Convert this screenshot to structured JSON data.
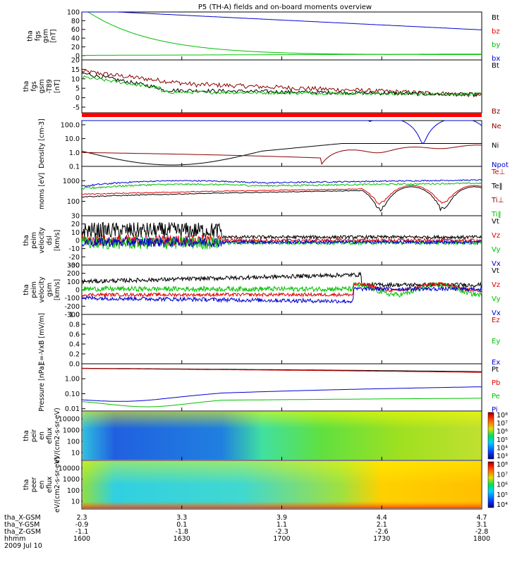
{
  "title": "P5 (TH-A) fields and on-board moments overview",
  "date": "2009 Jul 10",
  "colors": {
    "black": "#000000",
    "red": "#e00000",
    "darkred": "#8b0000",
    "green": "#00c000",
    "blue": "#0000d0"
  },
  "time_axis": {
    "ticks": [
      "1600",
      "1630",
      "1700",
      "1730",
      "1800"
    ],
    "rows": [
      {
        "label": "tha_X-GSM",
        "values": [
          "2.3",
          "3.3",
          "3.9",
          "4.4",
          "4.7"
        ]
      },
      {
        "label": "tha_Y-GSM",
        "values": [
          "-0.9",
          "0.1",
          "1.1",
          "2.1",
          "3.1"
        ]
      },
      {
        "label": "tha_Z-GSM",
        "values": [
          "-1.1",
          "-1.8",
          "-2.3",
          "-2.6",
          "-2.8"
        ]
      },
      {
        "label": "hhmm",
        "values": [
          "1600",
          "1630",
          "1700",
          "1730",
          "1800"
        ]
      }
    ]
  },
  "chart_data": [
    {
      "type": "line",
      "ylabel": "tha fgs gsm [nT]",
      "ylim": [
        -10,
        100
      ],
      "yticks": [
        "100",
        "80",
        "60",
        "40",
        "20",
        "0"
      ],
      "legend": [
        {
          "name": "Bt",
          "color": "#000000"
        },
        {
          "name": "bz",
          "color": "#e00000"
        },
        {
          "name": "by",
          "color": "#00c000"
        },
        {
          "name": "bx",
          "color": "#0000d0"
        }
      ]
    },
    {
      "type": "line",
      "ylabel": "tha fgs gsm -T89 [nT]",
      "ylim": [
        -8,
        20
      ],
      "yticks": [
        "20",
        "15",
        "10",
        "5",
        "0",
        "-5"
      ],
      "legend": [
        {
          "name": "Bt",
          "color": "#000000"
        },
        {
          "name": "Bz",
          "color": "#8b0000"
        }
      ]
    },
    {
      "type": "line",
      "ylabel": "Density [cm-3]",
      "scale": "log",
      "ylim": [
        0.1,
        200
      ],
      "yticks": [
        "100.0",
        "10.0",
        "1.0",
        "0.1"
      ],
      "legend": [
        {
          "name": "Ne",
          "color": "#8b0000"
        },
        {
          "name": "Ni",
          "color": "#000000"
        },
        {
          "name": "Npot",
          "color": "#0000d0"
        }
      ]
    },
    {
      "type": "line",
      "ylabel": "moms [eV]",
      "scale": "log",
      "yticks": [
        "1000",
        "100"
      ],
      "legend": [
        {
          "name": "Te⊥",
          "color": "#e00000"
        },
        {
          "name": "Te‖",
          "color": "#000000"
        },
        {
          "name": "Ti⊥",
          "color": "#8b0000"
        },
        {
          "name": "Ti‖",
          "color": "#00c000"
        }
      ]
    },
    {
      "type": "line",
      "ylabel": "tha peim velocity dsl [km/s]",
      "ylim": [
        -30,
        30
      ],
      "yticks": [
        "30",
        "20",
        "10",
        "0",
        "-10",
        "-20",
        "-30"
      ],
      "legend": [
        {
          "name": "Vt",
          "color": "#000000"
        },
        {
          "name": "Vz",
          "color": "#e00000"
        },
        {
          "name": "Vy",
          "color": "#00c000"
        },
        {
          "name": "Vx",
          "color": "#0000d0"
        }
      ]
    },
    {
      "type": "line",
      "ylabel": "tha peim velocity gsm [km/s]",
      "ylim": [
        -300,
        300
      ],
      "yticks": [
        "300",
        "200",
        "100",
        "0",
        "-100",
        "-200",
        "-300"
      ],
      "legend": [
        {
          "name": "Vt",
          "color": "#000000"
        },
        {
          "name": "Vz",
          "color": "#e00000"
        },
        {
          "name": "Vy",
          "color": "#00c000"
        },
        {
          "name": "Vx",
          "color": "#0000d0"
        }
      ]
    },
    {
      "type": "line",
      "ylabel": "E=-VxB [mV/m]",
      "ylim": [
        0,
        1
      ],
      "yticks": [
        "1.0",
        "0.8",
        "0.6",
        "0.4",
        "0.2",
        "0.0"
      ],
      "legend": [
        {
          "name": "Ez",
          "color": "#e00000"
        },
        {
          "name": "Ey",
          "color": "#00c000"
        },
        {
          "name": "Ex",
          "color": "#0000d0"
        }
      ]
    },
    {
      "type": "line",
      "ylabel": "Pressure [nPa]",
      "scale": "log",
      "ylim": [
        0.007,
        10
      ],
      "yticks": [
        "1.00",
        "0.10",
        "0.01"
      ],
      "legend": [
        {
          "name": "Pt",
          "color": "#000000"
        },
        {
          "name": "Pb",
          "color": "#e00000"
        },
        {
          "name": "Pe",
          "color": "#00c000"
        },
        {
          "name": "Pi",
          "color": "#0000d0"
        }
      ]
    },
    {
      "type": "heatmap",
      "ylabel": "tha peir en eflux eV/(cm2-s-sr-eV)",
      "yticks": [
        "10000",
        "1000",
        "100",
        "10"
      ],
      "colorbar": [
        "10⁸",
        "10⁷",
        "10⁶",
        "10⁵",
        "10⁴",
        "10³"
      ]
    },
    {
      "type": "heatmap",
      "ylabel": "tha peer en eflux eV/(cm2-s-sr-eV)",
      "yticks": [
        "10000",
        "1000",
        "100",
        "10"
      ],
      "colorbar": [
        "10⁸",
        "10⁷",
        "10⁶",
        "10⁵",
        "10⁴"
      ]
    }
  ]
}
